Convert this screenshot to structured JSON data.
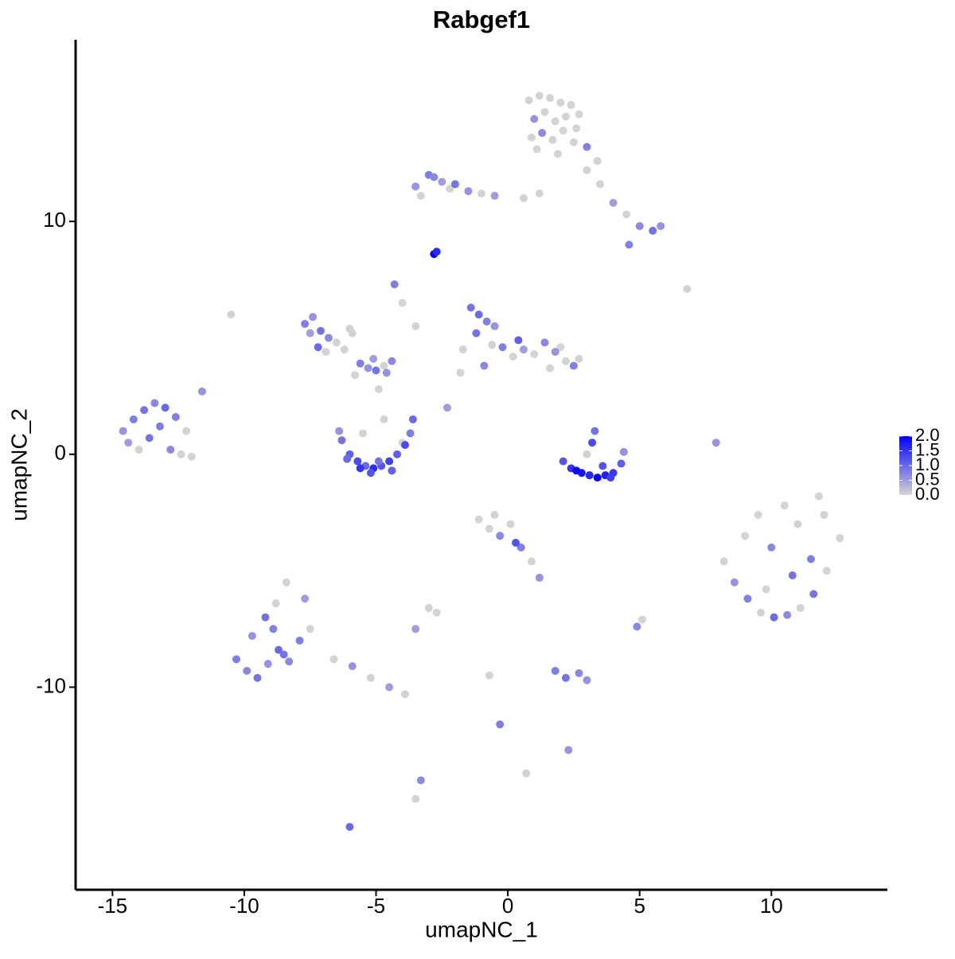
{
  "chart_data": {
    "type": "scatter",
    "title": "Rabgef1",
    "x_label": "umapNC_1",
    "y_label": "umapNC_2",
    "xlim": [
      -16.4,
      14.4
    ],
    "ylim": [
      -18.7,
      17.8
    ],
    "xticks": [
      -15,
      -10,
      -5,
      0,
      5,
      10
    ],
    "yticks": [
      -10,
      0,
      10
    ],
    "grid": false,
    "colorbar": {
      "lim": [
        0,
        2
      ],
      "low": "#d3d3d3",
      "high": "#0000ff",
      "ticks": [
        {
          "value": 0,
          "label": "0.0"
        },
        {
          "value": 0.5,
          "label": "0.5"
        },
        {
          "value": 1,
          "label": "1.0"
        },
        {
          "value": 1.5,
          "label": "1.5"
        },
        {
          "value": 2,
          "label": "2.0"
        }
      ]
    },
    "x": [
      0.8,
      1.2,
      1.6,
      2.0,
      2.4,
      2.7,
      1.0,
      1.4,
      1.8,
      2.2,
      2.6,
      0.9,
      1.3,
      1.7,
      2.1,
      2.5,
      1.1,
      1.9,
      3.0,
      3.4,
      -3.5,
      -3.0,
      -2.5,
      -2.0,
      -1.5,
      -1.0,
      -3.3,
      -2.8,
      -2.2,
      -0.5,
      0.6,
      1.2,
      3.0,
      3.5,
      4.0,
      4.5,
      5.0,
      5.5,
      5.8,
      4.6,
      -2.8,
      -2.7,
      -10.5,
      6.8,
      -4.3,
      -4.0,
      -3.5,
      -1.7,
      -2.3,
      7.9,
      -7.7,
      -7.4,
      -7.1,
      -6.8,
      -6.5,
      -7.5,
      -7.2,
      -6.9,
      -6.2,
      -5.9,
      -5.6,
      -5.3,
      -5.0,
      -4.7,
      -4.4,
      -5.8,
      -5.1,
      -4.9,
      -6.0,
      -4.6,
      -6.3,
      -6.0,
      -5.7,
      -5.4,
      -5.1,
      -4.8,
      -4.5,
      -4.2,
      -3.9,
      -3.7,
      -6.1,
      -5.6,
      -5.2,
      -4.9,
      -4.4,
      -4.0,
      -5.5,
      -4.7,
      -6.4,
      -3.6,
      -1.4,
      -1.1,
      -0.8,
      -0.5,
      -1.2,
      -0.6,
      -0.2,
      0.2,
      0.6,
      1.0,
      1.4,
      1.8,
      2.2,
      2.5,
      1.6,
      2.0,
      -0.9,
      0.4,
      -1.8,
      2.7,
      2.1,
      2.4,
      2.8,
      3.1,
      3.4,
      3.7,
      4.0,
      4.3,
      3.2,
      3.3,
      2.6,
      3.9,
      4.4,
      3.0,
      3.6,
      -14.6,
      -14.2,
      -13.8,
      -13.4,
      -13.0,
      -12.6,
      -12.2,
      -14.4,
      -13.6,
      -12.8,
      -12.4,
      -13.2,
      -14.0,
      -12.0,
      -11.6,
      8.2,
      8.6,
      9.1,
      9.6,
      10.1,
      10.6,
      11.1,
      11.6,
      12.1,
      12.6,
      9.0,
      9.5,
      10.0,
      10.5,
      11.0,
      11.5,
      12.0,
      9.8,
      10.8,
      11.8,
      -10.3,
      -9.9,
      -9.5,
      -9.1,
      -8.7,
      -8.3,
      -7.9,
      -7.5,
      -9.7,
      -9.2,
      -8.8,
      -8.4,
      -7.7,
      -8.9,
      -8.5,
      -6.6,
      -5.9,
      -5.2,
      -4.5,
      -3.9,
      -1.1,
      -0.7,
      -0.3,
      0.1,
      0.5,
      0.9,
      1.2,
      -0.5,
      0.3,
      -2.7,
      -3.0,
      -3.5,
      1.8,
      2.2,
      2.7,
      3.0,
      -0.7,
      -0.3,
      2.3,
      -3.5,
      -3.3,
      -6.0,
      4.9,
      5.1,
      0.7
    ],
    "y": [
      15.2,
      15.4,
      15.3,
      15.1,
      15.0,
      14.6,
      14.4,
      14.7,
      14.3,
      14.5,
      14.0,
      13.6,
      13.8,
      13.5,
      13.9,
      13.4,
      13.1,
      12.9,
      13.2,
      12.6,
      11.5,
      12.0,
      11.7,
      11.6,
      11.3,
      11.2,
      11.1,
      11.9,
      11.4,
      11.1,
      11.0,
      11.2,
      12.2,
      11.6,
      10.8,
      10.3,
      9.8,
      9.6,
      9.8,
      9.0,
      8.6,
      8.7,
      6.0,
      7.1,
      7.3,
      6.5,
      5.5,
      4.5,
      2.0,
      0.5,
      5.6,
      5.9,
      5.3,
      5.0,
      4.8,
      5.2,
      4.6,
      4.4,
      4.5,
      5.2,
      3.9,
      3.7,
      3.6,
      3.8,
      4.0,
      3.4,
      4.1,
      2.8,
      5.4,
      3.5,
      0.6,
      0.0,
      -0.3,
      -0.5,
      -0.6,
      -0.5,
      -0.3,
      0.0,
      0.4,
      0.9,
      -0.2,
      -0.6,
      -0.8,
      -0.3,
      -0.7,
      0.5,
      0.9,
      1.5,
      1.0,
      1.5,
      6.3,
      6.0,
      5.7,
      5.5,
      5.2,
      4.7,
      4.6,
      4.2,
      4.5,
      4.3,
      4.8,
      4.4,
      4.0,
      3.8,
      3.7,
      4.6,
      3.8,
      4.9,
      3.5,
      4.1,
      -0.3,
      -0.6,
      -0.8,
      -0.9,
      -1.0,
      -0.9,
      -0.8,
      -0.4,
      0.5,
      1.0,
      -0.7,
      -1.0,
      0.1,
      0.0,
      -0.5,
      1.0,
      1.5,
      1.9,
      2.2,
      2.0,
      1.6,
      1.0,
      0.5,
      0.7,
      0.2,
      0.0,
      1.2,
      0.2,
      -0.1,
      2.7,
      -4.6,
      -5.5,
      -6.2,
      -6.8,
      -7.0,
      -6.9,
      -6.6,
      -6.0,
      -5.0,
      -3.6,
      -3.5,
      -2.6,
      -4.0,
      -2.2,
      -3.0,
      -4.5,
      -2.6,
      -5.8,
      -5.2,
      -1.8,
      -8.8,
      -9.3,
      -9.6,
      -9.0,
      -8.4,
      -8.9,
      -8.0,
      -7.5,
      -7.8,
      -7.0,
      -6.4,
      -5.5,
      -6.2,
      -7.5,
      -8.6,
      -8.8,
      -9.1,
      -9.6,
      -10.0,
      -10.3,
      -2.8,
      -3.2,
      -3.5,
      -3.0,
      -4.0,
      -4.6,
      -5.3,
      -2.6,
      -3.8,
      -6.8,
      -6.6,
      -7.5,
      -9.3,
      -9.6,
      -9.4,
      -9.7,
      -9.5,
      -11.6,
      -12.7,
      -14.8,
      -14.0,
      -16.0,
      -7.4,
      -7.1,
      -13.7
    ],
    "values": [
      0,
      0,
      0,
      0,
      0,
      0,
      0.6,
      0,
      0,
      0,
      0,
      0,
      0.7,
      0,
      0,
      0,
      0,
      0,
      0.8,
      0,
      0.6,
      0.8,
      0.5,
      0.9,
      0.6,
      0,
      0,
      0.7,
      0,
      0.5,
      0,
      0,
      0,
      0,
      0.5,
      0,
      0.7,
      0.9,
      0.6,
      0.8,
      2.0,
      1.6,
      0,
      0,
      0.8,
      0,
      0,
      0,
      0.5,
      0.6,
      0.8,
      0.6,
      0.9,
      0.7,
      0,
      0.5,
      1.0,
      0,
      0,
      0,
      0.8,
      0.6,
      0.9,
      0,
      0.7,
      0,
      0.5,
      0,
      0,
      0.6,
      0.9,
      1.1,
      1.3,
      1.0,
      1.6,
      1.2,
      1.4,
      1.1,
      1.3,
      0.8,
      1.0,
      1.5,
      1.2,
      0.9,
      1.1,
      0,
      0,
      0,
      0.6,
      1.0,
      0.9,
      1.0,
      0.8,
      0.6,
      0.9,
      0,
      0.8,
      0,
      0.5,
      0,
      0.7,
      0.6,
      0,
      0.8,
      0,
      0,
      0.7,
      1.1,
      0,
      0,
      1.2,
      1.5,
      1.8,
      1.6,
      2.0,
      1.7,
      1.5,
      1.1,
      1.3,
      0.9,
      1.9,
      1.4,
      0.6,
      0,
      1.2,
      0.6,
      0.8,
      0.9,
      0.7,
      1.0,
      0.8,
      0,
      0.5,
      0.9,
      0.7,
      0,
      0.8,
      0,
      0,
      0.6,
      0,
      0.6,
      0.8,
      0,
      1.0,
      0.7,
      0,
      0.9,
      0,
      0,
      0,
      0,
      0.7,
      0,
      0,
      0.8,
      0,
      0,
      0.9,
      0,
      0.8,
      0.7,
      0.9,
      0.6,
      1.0,
      0.7,
      0.8,
      0,
      0.6,
      0.9,
      0,
      0,
      0.5,
      0.8,
      0.9,
      0,
      0.6,
      0,
      0.5,
      0,
      0,
      0,
      0.7,
      0,
      0.8,
      0,
      0.6,
      0,
      1.2,
      0,
      0,
      0.5,
      0.8,
      0.9,
      0.7,
      0.6,
      0,
      0.8,
      0.6,
      0,
      0.7,
      1.0,
      0.7,
      0,
      0
    ]
  }
}
